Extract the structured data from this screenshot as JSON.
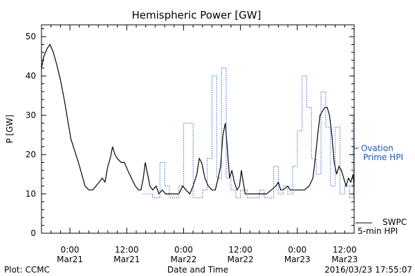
{
  "chart_data": {
    "type": "line",
    "title": "Hemispheric Power [GW]",
    "xlabel": "Date and Time",
    "ylabel": "P [GW]",
    "xlim": [
      -6,
      60
    ],
    "ylim": [
      0,
      53
    ],
    "yticks": [
      0,
      10,
      20,
      30,
      40,
      50
    ],
    "xticks": [
      {
        "x": 0,
        "time": "0:00",
        "date": "Mar21"
      },
      {
        "x": 12,
        "time": "12:00",
        "date": "Mar21"
      },
      {
        "x": 24,
        "time": "0:00",
        "date": "Mar22"
      },
      {
        "x": 36,
        "time": "12:00",
        "date": "Mar22"
      },
      {
        "x": 48,
        "time": "0:00",
        "date": "Mar23"
      },
      {
        "x": 58,
        "time": "12:00",
        "date": "Mar23"
      }
    ],
    "series": [
      {
        "name": "SWPC 5-min HPI",
        "color": "#000000",
        "style": "solid",
        "points": [
          [
            -6,
            42
          ],
          [
            -5.5,
            45
          ],
          [
            -4.8,
            47
          ],
          [
            -4.2,
            48
          ],
          [
            -3.5,
            46
          ],
          [
            -2.8,
            43
          ],
          [
            -2.0,
            39
          ],
          [
            -1.2,
            34
          ],
          [
            -0.5,
            29
          ],
          [
            0.2,
            24
          ],
          [
            1.0,
            21
          ],
          [
            1.8,
            18
          ],
          [
            2.5,
            15
          ],
          [
            3.2,
            12
          ],
          [
            4.0,
            11
          ],
          [
            4.8,
            11
          ],
          [
            5.5,
            12
          ],
          [
            6.2,
            13
          ],
          [
            6.8,
            14
          ],
          [
            7.4,
            13
          ],
          [
            8.0,
            17
          ],
          [
            8.5,
            19
          ],
          [
            9.0,
            22
          ],
          [
            9.5,
            20
          ],
          [
            10.0,
            19
          ],
          [
            10.8,
            18
          ],
          [
            11.5,
            18
          ],
          [
            12.2,
            16
          ],
          [
            13.0,
            14
          ],
          [
            13.8,
            12
          ],
          [
            14.5,
            11
          ],
          [
            15.0,
            11
          ],
          [
            15.5,
            14
          ],
          [
            15.9,
            18
          ],
          [
            16.4,
            15
          ],
          [
            16.9,
            12
          ],
          [
            17.5,
            11
          ],
          [
            18.2,
            12
          ],
          [
            18.8,
            10
          ],
          [
            19.5,
            11
          ],
          [
            20.2,
            10
          ],
          [
            21.0,
            10
          ],
          [
            22.0,
            10
          ],
          [
            23.0,
            10
          ],
          [
            23.8,
            12
          ],
          [
            24.5,
            11
          ],
          [
            25.3,
            10
          ],
          [
            26.0,
            12
          ],
          [
            26.8,
            15
          ],
          [
            27.3,
            19
          ],
          [
            27.8,
            18
          ],
          [
            28.5,
            14
          ],
          [
            29.2,
            12
          ],
          [
            30.0,
            11
          ],
          [
            30.7,
            11
          ],
          [
            31.3,
            14
          ],
          [
            31.8,
            17
          ],
          [
            32.3,
            25
          ],
          [
            32.8,
            28
          ],
          [
            33.2,
            22
          ],
          [
            33.7,
            14
          ],
          [
            34.2,
            16
          ],
          [
            34.7,
            13
          ],
          [
            35.3,
            11
          ],
          [
            35.8,
            12
          ],
          [
            36.2,
            16
          ],
          [
            36.6,
            13
          ],
          [
            37.0,
            10
          ],
          [
            37.8,
            10
          ],
          [
            38.5,
            10
          ],
          [
            39.5,
            10
          ],
          [
            40.5,
            10
          ],
          [
            41.5,
            10
          ],
          [
            42.5,
            11
          ],
          [
            43.5,
            12
          ],
          [
            44.0,
            13
          ],
          [
            44.5,
            11
          ],
          [
            45.0,
            11
          ],
          [
            46.0,
            12
          ],
          [
            46.5,
            11
          ],
          [
            47.5,
            11
          ],
          [
            48.5,
            11
          ],
          [
            49.5,
            11
          ],
          [
            50.5,
            12
          ],
          [
            51.3,
            14
          ],
          [
            51.8,
            19
          ],
          [
            52.3,
            25
          ],
          [
            52.8,
            30
          ],
          [
            53.3,
            31
          ],
          [
            53.8,
            32
          ],
          [
            54.3,
            32
          ],
          [
            54.8,
            30
          ],
          [
            55.3,
            25
          ],
          [
            55.8,
            18
          ],
          [
            56.3,
            15
          ],
          [
            56.8,
            17
          ],
          [
            57.3,
            16
          ],
          [
            57.8,
            14
          ],
          [
            58.3,
            12
          ],
          [
            58.8,
            14
          ],
          [
            59.3,
            13
          ],
          [
            59.8,
            15
          ],
          [
            60.0,
            12
          ]
        ]
      },
      {
        "name": "Ovation Prime HPI",
        "color": "#1a56c9",
        "style": "dotted",
        "points": [
          [
            15.5,
            10
          ],
          [
            17.5,
            10
          ],
          [
            17.5,
            9
          ],
          [
            19.0,
            9
          ],
          [
            19.0,
            18
          ],
          [
            20.0,
            18
          ],
          [
            20.0,
            12
          ],
          [
            21.0,
            12
          ],
          [
            21.0,
            9
          ],
          [
            23.0,
            9
          ],
          [
            23.0,
            12
          ],
          [
            24.0,
            12
          ],
          [
            24.0,
            28
          ],
          [
            26.0,
            28
          ],
          [
            26.0,
            9
          ],
          [
            28.0,
            9
          ],
          [
            28.0,
            11
          ],
          [
            29.0,
            11
          ],
          [
            29.0,
            19
          ],
          [
            30.0,
            19
          ],
          [
            30.0,
            40
          ],
          [
            31.0,
            40
          ],
          [
            31.0,
            14
          ],
          [
            32.0,
            14
          ],
          [
            32.0,
            42
          ],
          [
            33.0,
            42
          ],
          [
            33.0,
            14
          ],
          [
            34.0,
            14
          ],
          [
            34.0,
            11
          ],
          [
            35.0,
            11
          ],
          [
            35.0,
            9
          ],
          [
            36.0,
            9
          ],
          [
            36.0,
            11
          ],
          [
            37.5,
            11
          ],
          [
            37.5,
            9
          ],
          [
            40.0,
            9
          ],
          [
            40.0,
            11
          ],
          [
            41.0,
            11
          ],
          [
            41.0,
            9
          ],
          [
            43.0,
            9
          ],
          [
            43.0,
            17
          ],
          [
            44.0,
            17
          ],
          [
            44.0,
            10
          ],
          [
            45.0,
            10
          ],
          [
            45.0,
            12
          ],
          [
            46.0,
            12
          ],
          [
            46.0,
            10
          ],
          [
            47.0,
            10
          ],
          [
            47.0,
            17
          ],
          [
            48.0,
            17
          ],
          [
            48.0,
            26
          ],
          [
            49.0,
            26
          ],
          [
            49.0,
            40
          ],
          [
            50.0,
            40
          ],
          [
            50.0,
            32
          ],
          [
            51.0,
            32
          ],
          [
            51.0,
            19
          ],
          [
            52.0,
            19
          ],
          [
            52.0,
            15
          ],
          [
            53.0,
            15
          ],
          [
            53.0,
            36
          ],
          [
            54.0,
            36
          ],
          [
            54.0,
            27
          ],
          [
            55.0,
            27
          ],
          [
            55.0,
            12
          ],
          [
            56.0,
            12
          ],
          [
            56.0,
            27
          ],
          [
            57.0,
            27
          ],
          [
            57.0,
            10
          ],
          [
            58.0,
            10
          ],
          [
            58.0,
            12
          ],
          [
            59.0,
            12
          ],
          [
            59.0,
            9
          ],
          [
            59.8,
            9
          ],
          [
            59.8,
            30
          ],
          [
            60.0,
            30
          ]
        ]
      }
    ],
    "legend": [
      {
        "label_lines": [
          "SWPC",
          "5-min HPI"
        ],
        "color": "#000000",
        "style": "solid"
      },
      {
        "label_lines": [
          "– Ovation",
          "Prime HPI"
        ],
        "color": "#1a56c9",
        "style": "dotted"
      }
    ],
    "footer": {
      "left": "Plot: CCMC",
      "right": "2016/03/23 17:55:07"
    }
  }
}
